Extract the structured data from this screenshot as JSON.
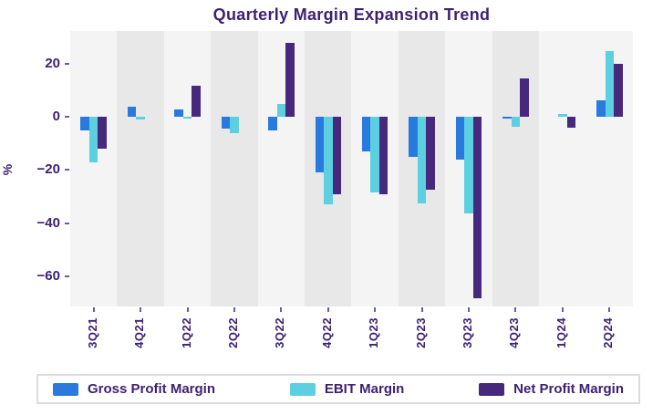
{
  "title": "Quarterly Margin Expansion Trend",
  "chart_data": {
    "type": "bar",
    "title": "Quarterly Margin Expansion Trend",
    "xlabel": "",
    "ylabel": "%",
    "categories": [
      "3Q21",
      "4Q21",
      "1Q22",
      "2Q22",
      "3Q22",
      "4Q22",
      "1Q23",
      "2Q23",
      "3Q23",
      "4Q23",
      "1Q24",
      "2Q24"
    ],
    "series": [
      {
        "name": "Gross Profit Margin",
        "color": "#2a7ade",
        "values": [
          -5,
          4,
          3,
          -4.5,
          -5,
          -21,
          -13,
          -15,
          -16,
          -0.7,
          0,
          6.5
        ]
      },
      {
        "name": "EBIT Margin",
        "color": "#5ccfe0",
        "values": [
          -17,
          -1,
          -0.5,
          -6,
          5,
          -33,
          -28.5,
          -32.5,
          -36.5,
          -3.5,
          1,
          25
        ]
      },
      {
        "name": "Net Profit Margin",
        "color": "#46287d",
        "values": [
          -12,
          0,
          12,
          0,
          28,
          -29,
          -29,
          -27.5,
          -68.5,
          14.5,
          -4,
          20
        ]
      }
    ],
    "y_ticks": [
      20,
      0,
      -20,
      -40,
      -60
    ],
    "ylim": [
      -71.5,
      32.5
    ],
    "grid": false,
    "legend_position": "bottom",
    "band_shaded_category_indices": [
      1,
      3,
      5,
      7,
      9
    ],
    "band_colors": {
      "light": "#f4f4f5",
      "shaded": "#e8e8e9"
    }
  },
  "colors": {
    "title_text": "#3d2173",
    "axis_text": "#3d2173",
    "tick_mark": "#6b5ba8",
    "legend_border": "#dcdce0",
    "background": "#ffffff"
  }
}
